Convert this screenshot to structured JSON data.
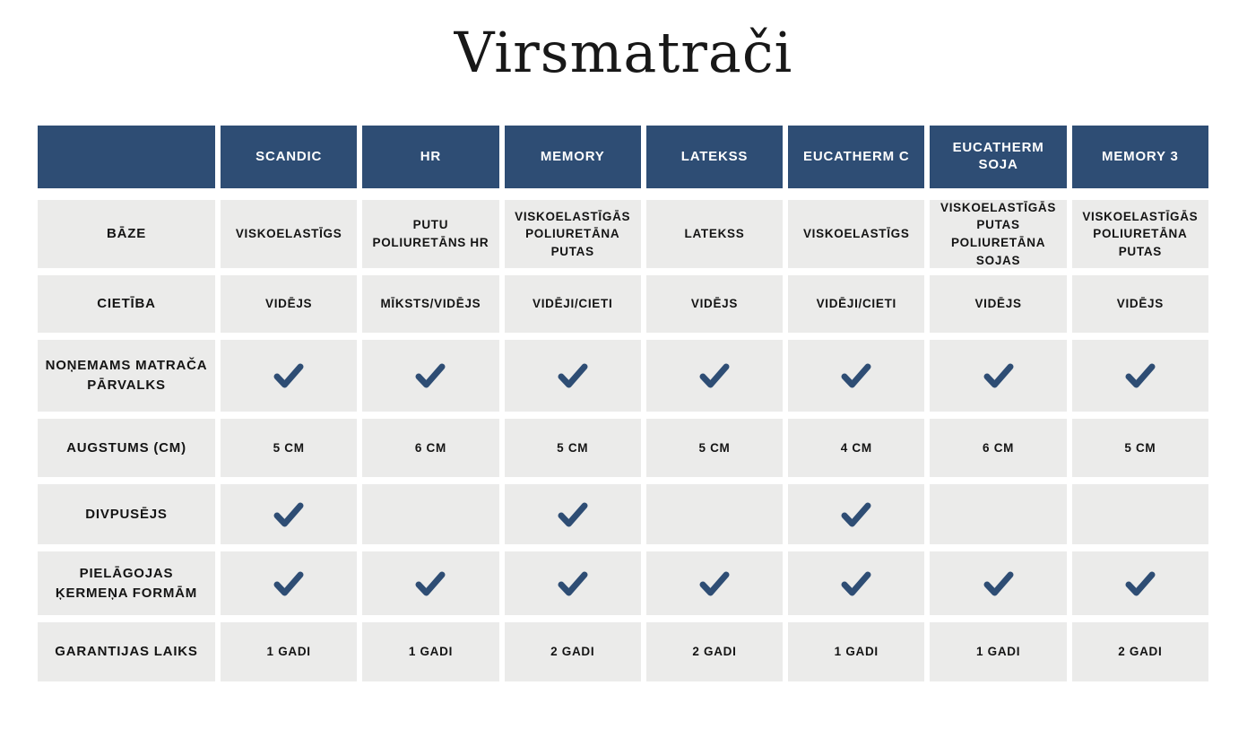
{
  "page": {
    "title": "Virsmatrači"
  },
  "colors": {
    "header_bg": "#2e4d74",
    "cell_bg": "#ebebea",
    "check": "#2e4d74",
    "header_text": "#ffffff",
    "body_text": "#141414"
  },
  "chart_data": {
    "type": "table",
    "title": "Virsmatrači",
    "corner_label": "",
    "columns": [
      "SCANDIC",
      "HR",
      "MEMORY",
      "LATEKSS",
      "EUCATHERM C",
      "EUCATHERM SOJA",
      "MEMORY 3"
    ],
    "rows": [
      {
        "label": "BĀZE",
        "type": "text",
        "values": [
          "VISKOELASTĪGS",
          "PUTU POLIURETĀNS HR",
          "VISKOELASTĪGĀS POLIURETĀNA PUTAS",
          "LATEKSS",
          "VISKOELASTĪGS",
          "VISKOELASTĪGĀS PUTAS POLIURETĀNA SOJAS",
          "VISKOELASTĪGĀS POLIURETĀNA PUTAS"
        ]
      },
      {
        "label": "CIETĪBA",
        "type": "text",
        "values": [
          "VIDĒJS",
          "MĪKSTS/VIDĒJS",
          "VIDĒJI/CIETI",
          "VIDĒJS",
          "VIDĒJI/CIETI",
          "VIDĒJS",
          "VIDĒJS"
        ]
      },
      {
        "label": "NOŅEMAMS MATRAČA PĀRVALKS",
        "type": "check",
        "values": [
          true,
          true,
          true,
          true,
          true,
          true,
          true
        ]
      },
      {
        "label": "AUGSTUMS (CM)",
        "type": "text",
        "values": [
          "5 CM",
          "6 CM",
          "5 CM",
          "5 CM",
          "4 CM",
          "6 CM",
          "5 CM"
        ]
      },
      {
        "label": "DIVPUSĒJS",
        "type": "check",
        "values": [
          true,
          false,
          true,
          false,
          true,
          false,
          false
        ]
      },
      {
        "label": "PIELĀGOJAS ĶERMEŅA FORMĀM",
        "type": "check",
        "values": [
          true,
          true,
          true,
          true,
          true,
          true,
          true
        ]
      },
      {
        "label": "GARANTIJAS LAIKS",
        "type": "text",
        "values": [
          "1 GADI",
          "1 GADI",
          "2 GADI",
          "2 GADI",
          "1 GADI",
          "1 GADI",
          "2 GADI"
        ]
      }
    ]
  }
}
